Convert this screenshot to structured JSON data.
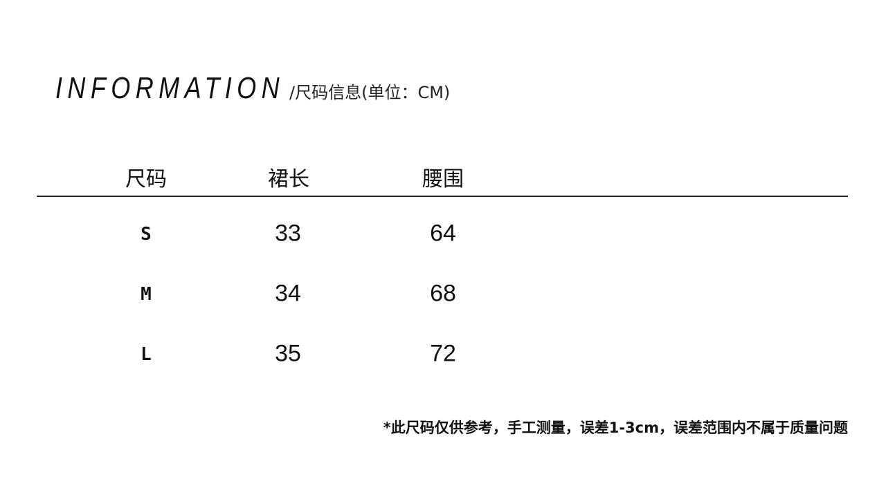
{
  "title": {
    "main": "INFORMATION",
    "sub": "/尺码信息(单位：CM)"
  },
  "table": {
    "headers": [
      "尺码",
      "裙长",
      "腰围"
    ],
    "rows": [
      [
        "S",
        "33",
        "64"
      ],
      [
        "M",
        "34",
        "68"
      ],
      [
        "L",
        "35",
        "72"
      ]
    ]
  },
  "note": "*此尺码仅供参考，手工测量，误差1-3cm，误差范围内不属于质量问题"
}
